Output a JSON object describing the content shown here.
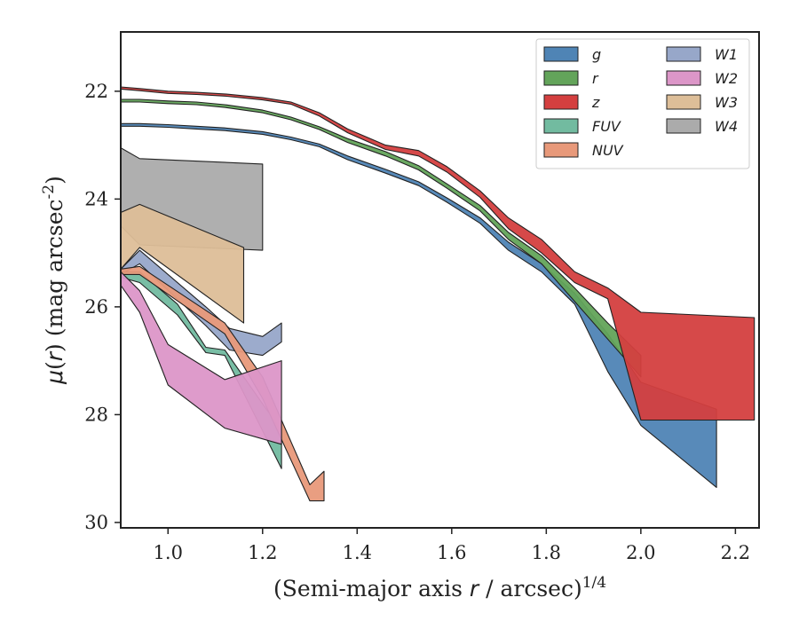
{
  "chart_data": {
    "type": "area",
    "xlabel": "(Semi-major axis r / arcsec)^{1/4}",
    "ylabel": "μ(r) (mag arcsec^{-2})",
    "xlim": [
      0.9,
      2.25
    ],
    "ylim": [
      30.1,
      20.9
    ],
    "y_inverted": true,
    "x_ticks": [
      "1.0",
      "1.2",
      "1.4",
      "1.6",
      "1.8",
      "2.0",
      "2.2"
    ],
    "y_ticks": [
      "22",
      "24",
      "26",
      "28",
      "30"
    ],
    "grid": false,
    "legend_position": "top-right",
    "legend_columns": 2,
    "series": [
      {
        "name": "W4",
        "color": "#ababab",
        "x": [
          0.9,
          0.94,
          1.2
        ],
        "y_upper": [
          23.05,
          23.25,
          23.35
        ],
        "y_lower": [
          24.5,
          24.85,
          24.95
        ]
      },
      {
        "name": "W3",
        "color": "#ddbe98",
        "x": [
          0.9,
          0.94,
          1.16
        ],
        "y_upper": [
          24.25,
          24.1,
          24.9
        ],
        "y_lower": [
          25.3,
          24.9,
          26.3
        ]
      },
      {
        "name": "W1",
        "color": "#97a7c9",
        "x": [
          0.9,
          0.94,
          1.08,
          1.13,
          1.2,
          1.24
        ],
        "y_upper": [
          25.3,
          24.95,
          26.0,
          26.4,
          26.55,
          26.3
        ],
        "y_lower": [
          25.4,
          25.2,
          26.35,
          26.8,
          26.9,
          26.65
        ]
      },
      {
        "name": "FUV",
        "color": "#72bba0",
        "x": [
          0.9,
          0.94,
          1.02,
          1.08,
          1.12,
          1.24
        ],
        "y_upper": [
          25.35,
          25.35,
          25.95,
          26.75,
          26.8,
          28.3
        ],
        "y_lower": [
          25.45,
          25.55,
          26.15,
          26.85,
          26.9,
          29.0
        ]
      },
      {
        "name": "NUV",
        "color": "#e8997a",
        "x": [
          0.9,
          0.94,
          1.12,
          1.2,
          1.3,
          1.33
        ],
        "y_upper": [
          25.3,
          25.25,
          26.3,
          27.3,
          29.3,
          29.05
        ],
        "y_lower": [
          25.4,
          25.4,
          26.5,
          27.7,
          29.6,
          29.6
        ]
      },
      {
        "name": "W2",
        "color": "#dc96c8",
        "x": [
          0.9,
          0.94,
          1.0,
          1.12,
          1.24
        ],
        "y_upper": [
          25.35,
          25.7,
          26.7,
          27.35,
          27.0
        ],
        "y_lower": [
          25.6,
          26.1,
          27.45,
          28.25,
          28.55
        ]
      },
      {
        "name": "g",
        "color": "#4f84b5",
        "x": [
          0.9,
          0.94,
          1.0,
          1.06,
          1.12,
          1.2,
          1.26,
          1.32,
          1.38,
          1.46,
          1.53,
          1.59,
          1.66,
          1.72,
          1.79,
          1.86,
          1.93,
          2.0,
          2.16
        ],
        "y_upper": [
          22.6,
          22.6,
          22.62,
          22.65,
          22.68,
          22.75,
          22.85,
          22.98,
          23.2,
          23.45,
          23.68,
          23.98,
          24.35,
          24.8,
          25.2,
          25.75,
          26.5,
          27.4,
          27.9
        ],
        "y_lower": [
          22.65,
          22.65,
          22.67,
          22.7,
          22.73,
          22.8,
          22.9,
          23.03,
          23.27,
          23.52,
          23.75,
          24.06,
          24.45,
          24.95,
          25.35,
          25.95,
          27.2,
          28.2,
          29.35
        ]
      },
      {
        "name": "r",
        "color": "#63a45a",
        "x": [
          0.9,
          0.94,
          1.0,
          1.06,
          1.12,
          1.2,
          1.26,
          1.32,
          1.38,
          1.46,
          1.53,
          1.59,
          1.66,
          1.72,
          1.79,
          1.86,
          1.93,
          2.0
        ],
        "y_upper": [
          22.15,
          22.15,
          22.18,
          22.2,
          22.25,
          22.35,
          22.48,
          22.66,
          22.88,
          23.12,
          23.38,
          23.72,
          24.12,
          24.62,
          25.05,
          25.65,
          26.3,
          26.9
        ],
        "y_lower": [
          22.2,
          22.2,
          22.23,
          22.25,
          22.3,
          22.4,
          22.53,
          22.71,
          22.95,
          23.2,
          23.46,
          23.8,
          24.22,
          24.75,
          25.2,
          25.9,
          26.6,
          27.3
        ]
      },
      {
        "name": "z",
        "color": "#d43f3f",
        "x": [
          0.9,
          0.94,
          1.0,
          1.06,
          1.12,
          1.2,
          1.26,
          1.32,
          1.38,
          1.46,
          1.53,
          1.59,
          1.66,
          1.72,
          1.79,
          1.86,
          1.93,
          2.0,
          2.24
        ],
        "y_upper": [
          21.92,
          21.95,
          22.0,
          22.02,
          22.05,
          22.12,
          22.2,
          22.4,
          22.7,
          23.0,
          23.1,
          23.4,
          23.85,
          24.35,
          24.75,
          25.35,
          25.65,
          26.1,
          26.2
        ],
        "y_lower": [
          21.96,
          21.99,
          22.04,
          22.06,
          22.09,
          22.16,
          22.24,
          22.46,
          22.77,
          23.08,
          23.2,
          23.5,
          23.97,
          24.55,
          25.0,
          25.55,
          25.85,
          28.1,
          28.1
        ]
      }
    ],
    "legend": [
      {
        "label": "g",
        "color": "#4f84b5"
      },
      {
        "label": "r",
        "color": "#63a45a"
      },
      {
        "label": "z",
        "color": "#d43f3f"
      },
      {
        "label": "FUV",
        "color": "#72bba0"
      },
      {
        "label": "NUV",
        "color": "#e8997a"
      },
      {
        "label": "W1",
        "color": "#97a7c9"
      },
      {
        "label": "W2",
        "color": "#dc96c8"
      },
      {
        "label": "W3",
        "color": "#ddbe98"
      },
      {
        "label": "W4",
        "color": "#ababab"
      }
    ]
  }
}
